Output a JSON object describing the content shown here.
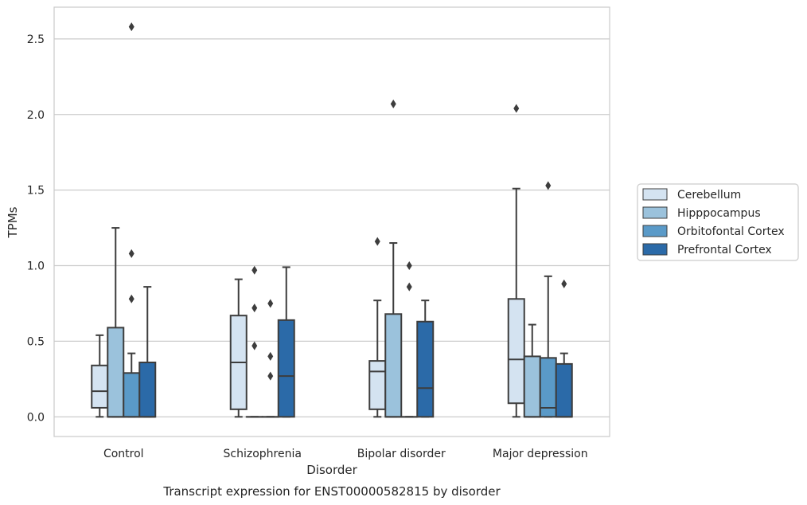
{
  "chart_data": {
    "type": "boxplot",
    "caption": "Transcript expression for ENST00000582815 by disorder",
    "xlabel": "Disorder",
    "ylabel": "TPMs",
    "ylim": [
      -0.13,
      2.71
    ],
    "yticks": [
      0.0,
      0.5,
      1.0,
      1.5,
      2.0,
      2.5
    ],
    "ytick_labels": [
      "0.0",
      "0.5",
      "1.0",
      "1.5",
      "2.0",
      "2.5"
    ],
    "grid": "horizontal",
    "legend_position": "right",
    "categories": [
      "Control",
      "Schizophrenia",
      "Bipolar disorder",
      "Major depression"
    ],
    "series": [
      {
        "name": "Cerebellum",
        "color": "#d4e3f1",
        "boxes": [
          {
            "whislo": 0.0,
            "q1": 0.06,
            "med": 0.17,
            "q3": 0.34,
            "whishi": 0.54,
            "fliers": []
          },
          {
            "whislo": 0.0,
            "q1": 0.05,
            "med": 0.36,
            "q3": 0.67,
            "whishi": 0.91,
            "fliers": []
          },
          {
            "whislo": 0.0,
            "q1": 0.05,
            "med": 0.3,
            "q3": 0.37,
            "whishi": 0.77,
            "fliers": [
              1.16
            ]
          },
          {
            "whislo": 0.0,
            "q1": 0.09,
            "med": 0.38,
            "q3": 0.78,
            "whishi": 1.51,
            "fliers": [
              2.04
            ]
          }
        ]
      },
      {
        "name": "Hipppocampus",
        "color": "#9bc2dc",
        "boxes": [
          {
            "whislo": 0.0,
            "q1": 0.0,
            "med": 0.0,
            "q3": 0.59,
            "whishi": 1.25,
            "fliers": []
          },
          {
            "whislo": 0.0,
            "q1": 0.0,
            "med": 0.0,
            "q3": 0.0,
            "whishi": 0.0,
            "fliers": [
              0.97,
              0.72,
              0.47
            ]
          },
          {
            "whislo": 0.0,
            "q1": 0.0,
            "med": 0.0,
            "q3": 0.68,
            "whishi": 1.15,
            "fliers": [
              2.07
            ]
          },
          {
            "whislo": 0.0,
            "q1": 0.0,
            "med": 0.0,
            "q3": 0.4,
            "whishi": 0.61,
            "fliers": []
          }
        ]
      },
      {
        "name": "Orbitofontal Cortex",
        "color": "#5a9ac8",
        "boxes": [
          {
            "whislo": 0.0,
            "q1": 0.0,
            "med": 0.0,
            "q3": 0.29,
            "whishi": 0.42,
            "fliers": [
              2.58,
              1.08,
              0.78
            ]
          },
          {
            "whislo": 0.0,
            "q1": 0.0,
            "med": 0.0,
            "q3": 0.0,
            "whishi": 0.0,
            "fliers": [
              0.75,
              0.4,
              0.27
            ]
          },
          {
            "whislo": 0.0,
            "q1": 0.0,
            "med": 0.0,
            "q3": 0.0,
            "whishi": 0.0,
            "fliers": [
              1.0,
              0.86
            ]
          },
          {
            "whislo": 0.0,
            "q1": 0.0,
            "med": 0.06,
            "q3": 0.39,
            "whishi": 0.93,
            "fliers": [
              1.53
            ]
          }
        ]
      },
      {
        "name": "Prefrontal Cortex",
        "color": "#2b6aa8",
        "boxes": [
          {
            "whislo": 0.0,
            "q1": 0.0,
            "med": 0.0,
            "q3": 0.36,
            "whishi": 0.86,
            "fliers": []
          },
          {
            "whislo": 0.0,
            "q1": 0.0,
            "med": 0.27,
            "q3": 0.64,
            "whishi": 0.99,
            "fliers": []
          },
          {
            "whislo": 0.0,
            "q1": 0.0,
            "med": 0.19,
            "q3": 0.63,
            "whishi": 0.77,
            "fliers": []
          },
          {
            "whislo": 0.0,
            "q1": 0.0,
            "med": 0.0,
            "q3": 0.35,
            "whishi": 0.42,
            "fliers": [
              0.88
            ]
          }
        ]
      }
    ]
  }
}
